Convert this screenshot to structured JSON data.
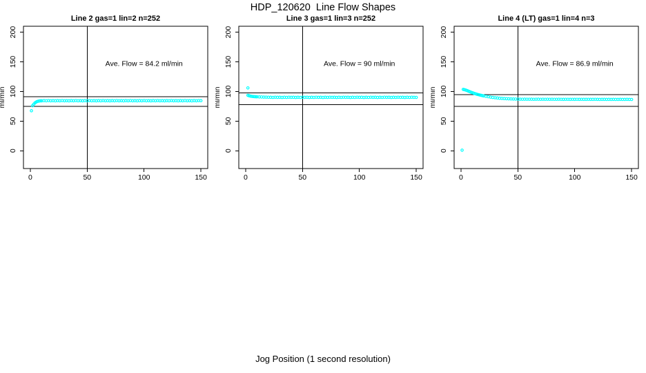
{
  "page": {
    "main_title": "HDP_120620  Line Flow Shapes",
    "x_axis_label": "Jog Position (1 second resolution)",
    "background_color": "#FFFFFF",
    "axis_color": "#000000",
    "marker_color": "#00FFFF"
  },
  "chart_data": [
    {
      "type": "scatter",
      "title": "Line 2 gas=1 lin=2 n=252",
      "ylabel": "ml/min",
      "annotation": "Ave. Flow =  84.2  ml/min",
      "ave_flow_ml_min": 84.2,
      "n": 252,
      "xlim": [
        -6,
        156
      ],
      "ylim": [
        -30,
        210
      ],
      "x_ticks": [
        0,
        50,
        100,
        150
      ],
      "y_ticks": [
        0,
        50,
        100,
        150,
        200
      ],
      "vline_x": 50,
      "hlines": [
        91.2,
        74.6
      ],
      "annotation_pos": [
        100,
        147
      ],
      "grid": false,
      "points": [
        [
          1,
          67.5
        ],
        [
          2,
          76
        ],
        [
          3,
          78.5
        ],
        [
          4,
          80.5
        ],
        [
          5,
          82
        ],
        [
          6,
          83
        ],
        [
          7,
          83.6
        ],
        [
          8,
          84
        ],
        [
          9,
          84.2
        ],
        [
          10,
          84.2
        ],
        [
          12,
          84.5
        ],
        [
          14,
          84.3
        ],
        [
          16,
          84.6
        ],
        [
          18,
          84.3
        ],
        [
          20,
          84.4
        ],
        [
          22,
          84.2
        ],
        [
          24,
          84.5
        ],
        [
          26,
          84.3
        ],
        [
          28,
          84.6
        ],
        [
          30,
          84.3
        ],
        [
          32,
          84.4
        ],
        [
          34,
          84.2
        ],
        [
          36,
          84.5
        ],
        [
          38,
          84.3
        ],
        [
          40,
          84.6
        ],
        [
          42,
          84.3
        ],
        [
          44,
          84.4
        ],
        [
          46,
          84.2
        ],
        [
          48,
          84.5
        ],
        [
          50,
          84.3
        ],
        [
          52,
          84.6
        ],
        [
          54,
          84.3
        ],
        [
          56,
          84.4
        ],
        [
          58,
          84.2
        ],
        [
          60,
          84.5
        ],
        [
          62,
          84.3
        ],
        [
          64,
          84.6
        ],
        [
          66,
          84.3
        ],
        [
          68,
          84.4
        ],
        [
          70,
          84.2
        ],
        [
          72,
          84.5
        ],
        [
          74,
          84.3
        ],
        [
          76,
          84.6
        ],
        [
          78,
          84.3
        ],
        [
          80,
          84.4
        ],
        [
          82,
          84.2
        ],
        [
          84,
          84.5
        ],
        [
          86,
          84.3
        ],
        [
          88,
          84.6
        ],
        [
          90,
          84.3
        ],
        [
          92,
          84.4
        ],
        [
          94,
          84.2
        ],
        [
          96,
          84.5
        ],
        [
          98,
          84.3
        ],
        [
          100,
          84.6
        ],
        [
          102,
          84.3
        ],
        [
          104,
          84.4
        ],
        [
          106,
          84.2
        ],
        [
          108,
          84.5
        ],
        [
          110,
          84.3
        ],
        [
          112,
          84.6
        ],
        [
          114,
          84.3
        ],
        [
          116,
          84.4
        ],
        [
          118,
          84.2
        ],
        [
          120,
          84.5
        ],
        [
          122,
          84.3
        ],
        [
          124,
          84.6
        ],
        [
          126,
          84.3
        ],
        [
          128,
          84.4
        ],
        [
          130,
          84.2
        ],
        [
          132,
          84.5
        ],
        [
          134,
          84.3
        ],
        [
          136,
          84.6
        ],
        [
          138,
          84.3
        ],
        [
          140,
          84.4
        ],
        [
          142,
          84.2
        ],
        [
          144,
          84.5
        ],
        [
          146,
          84.3
        ],
        [
          148,
          84.6
        ],
        [
          150,
          84.5
        ]
      ]
    },
    {
      "type": "scatter",
      "title": "Line 3 gas=1 lin=3 n=252",
      "ylabel": "ml/min",
      "annotation": "Ave. Flow =  90  ml/min",
      "ave_flow_ml_min": 90,
      "n": 252,
      "xlim": [
        -6,
        156
      ],
      "ylim": [
        -30,
        210
      ],
      "x_ticks": [
        0,
        50,
        100,
        150
      ],
      "y_ticks": [
        0,
        50,
        100,
        150,
        200
      ],
      "vline_x": 50,
      "hlines": [
        97.6,
        77.7
      ],
      "annotation_pos": [
        100,
        147
      ],
      "grid": false,
      "points": [
        [
          2,
          106
        ],
        [
          2,
          93.5
        ],
        [
          3,
          92.8
        ],
        [
          4,
          92.3
        ],
        [
          5,
          91.9
        ],
        [
          6,
          91.6
        ],
        [
          7,
          91.4
        ],
        [
          8,
          91.2
        ],
        [
          9,
          91.1
        ],
        [
          10,
          91
        ],
        [
          12,
          90.8
        ],
        [
          14,
          90.7
        ],
        [
          16,
          90.5
        ],
        [
          18,
          90.4
        ],
        [
          20,
          90.3
        ],
        [
          22,
          90.2
        ],
        [
          24,
          90
        ],
        [
          26,
          90.3
        ],
        [
          28,
          90.1
        ],
        [
          30,
          90.2
        ],
        [
          32,
          89.9
        ],
        [
          34,
          90.2
        ],
        [
          36,
          90
        ],
        [
          38,
          90.3
        ],
        [
          40,
          90.1
        ],
        [
          42,
          90.2
        ],
        [
          44,
          89.9
        ],
        [
          46,
          90.2
        ],
        [
          48,
          90
        ],
        [
          50,
          90.3
        ],
        [
          52,
          90.1
        ],
        [
          54,
          90.2
        ],
        [
          56,
          89.9
        ],
        [
          58,
          90.2
        ],
        [
          60,
          90
        ],
        [
          62,
          90.3
        ],
        [
          64,
          90.1
        ],
        [
          66,
          90.2
        ],
        [
          68,
          89.9
        ],
        [
          70,
          90.2
        ],
        [
          72,
          90
        ],
        [
          74,
          90.3
        ],
        [
          76,
          90.1
        ],
        [
          78,
          90.2
        ],
        [
          80,
          89.9
        ],
        [
          82,
          90.2
        ],
        [
          84,
          90
        ],
        [
          86,
          90.3
        ],
        [
          88,
          90.1
        ],
        [
          90,
          90.2
        ],
        [
          92,
          89.9
        ],
        [
          94,
          90.2
        ],
        [
          96,
          90
        ],
        [
          98,
          90.3
        ],
        [
          100,
          90.1
        ],
        [
          102,
          90.2
        ],
        [
          104,
          89.9
        ],
        [
          106,
          90.2
        ],
        [
          108,
          90
        ],
        [
          110,
          90.3
        ],
        [
          112,
          90.1
        ],
        [
          114,
          90.2
        ],
        [
          116,
          89.9
        ],
        [
          118,
          90.2
        ],
        [
          120,
          90
        ],
        [
          122,
          90.3
        ],
        [
          124,
          90.1
        ],
        [
          126,
          90.2
        ],
        [
          128,
          89.9
        ],
        [
          130,
          90.2
        ],
        [
          132,
          90
        ],
        [
          134,
          90.3
        ],
        [
          136,
          90.1
        ],
        [
          138,
          90.2
        ],
        [
          140,
          89.9
        ],
        [
          142,
          90.2
        ],
        [
          144,
          90
        ],
        [
          146,
          90.3
        ],
        [
          148,
          90.1
        ],
        [
          150,
          90
        ]
      ]
    },
    {
      "type": "scatter",
      "title": "Line 4 (LT) gas=1 lin=4 n=3",
      "ylabel": "ml/min",
      "annotation": "Ave. Flow =  86.9  ml/min",
      "ave_flow_ml_min": 86.9,
      "n": 3,
      "xlim": [
        -6,
        156
      ],
      "ylim": [
        -30,
        210
      ],
      "x_ticks": [
        0,
        50,
        100,
        150
      ],
      "y_ticks": [
        0,
        50,
        100,
        150,
        200
      ],
      "vline_x": 50,
      "hlines": [
        94.8,
        75
      ],
      "annotation_pos": [
        100,
        147
      ],
      "grid": false,
      "points": [
        [
          1,
          1
        ],
        [
          2,
          103.5
        ],
        [
          3,
          103
        ],
        [
          4,
          102.5
        ],
        [
          5,
          101.8
        ],
        [
          6,
          101
        ],
        [
          7,
          100.2
        ],
        [
          8,
          99.4
        ],
        [
          9,
          98.6
        ],
        [
          10,
          97.9
        ],
        [
          11,
          97.2
        ],
        [
          12,
          96.5
        ],
        [
          13,
          95.9
        ],
        [
          14,
          95.3
        ],
        [
          15,
          94.8
        ],
        [
          16,
          94.3
        ],
        [
          17,
          93.8
        ],
        [
          18,
          93.4
        ],
        [
          19,
          92.9
        ],
        [
          20,
          92.5
        ],
        [
          22,
          91.8
        ],
        [
          24,
          91.1
        ],
        [
          26,
          90.5
        ],
        [
          28,
          89.9
        ],
        [
          30,
          89.4
        ],
        [
          32,
          89
        ],
        [
          34,
          88.6
        ],
        [
          36,
          88.3
        ],
        [
          38,
          88
        ],
        [
          40,
          87.8
        ],
        [
          42,
          87.6
        ],
        [
          44,
          87.4
        ],
        [
          46,
          87.3
        ],
        [
          48,
          87.2
        ],
        [
          50,
          87.1
        ],
        [
          52,
          87
        ],
        [
          54,
          86.9
        ],
        [
          56,
          87
        ],
        [
          58,
          86.9
        ],
        [
          60,
          86.9
        ],
        [
          62,
          87
        ],
        [
          64,
          86.8
        ],
        [
          66,
          86.9
        ],
        [
          68,
          87
        ],
        [
          70,
          86.8
        ],
        [
          72,
          86.9
        ],
        [
          74,
          86.8
        ],
        [
          76,
          86.9
        ],
        [
          78,
          86.8
        ],
        [
          80,
          86.9
        ],
        [
          82,
          86.8
        ],
        [
          84,
          86.8
        ],
        [
          86,
          86.9
        ],
        [
          88,
          86.8
        ],
        [
          90,
          86.7
        ],
        [
          92,
          86.8
        ],
        [
          94,
          86.8
        ],
        [
          96,
          86.7
        ],
        [
          98,
          86.8
        ],
        [
          100,
          86.7
        ],
        [
          102,
          86.8
        ],
        [
          104,
          86.7
        ],
        [
          106,
          86.8
        ],
        [
          108,
          86.7
        ],
        [
          110,
          86.7
        ],
        [
          112,
          86.8
        ],
        [
          114,
          86.7
        ],
        [
          116,
          86.7
        ],
        [
          118,
          86.8
        ],
        [
          120,
          86.7
        ],
        [
          122,
          86.6
        ],
        [
          124,
          86.7
        ],
        [
          126,
          86.7
        ],
        [
          128,
          86.6
        ],
        [
          130,
          86.7
        ],
        [
          132,
          86.6
        ],
        [
          134,
          86.7
        ],
        [
          136,
          86.6
        ],
        [
          138,
          86.6
        ],
        [
          140,
          86.7
        ],
        [
          142,
          86.6
        ],
        [
          144,
          86.6
        ],
        [
          146,
          86.7
        ],
        [
          148,
          86.6
        ],
        [
          150,
          86.5
        ]
      ]
    }
  ]
}
